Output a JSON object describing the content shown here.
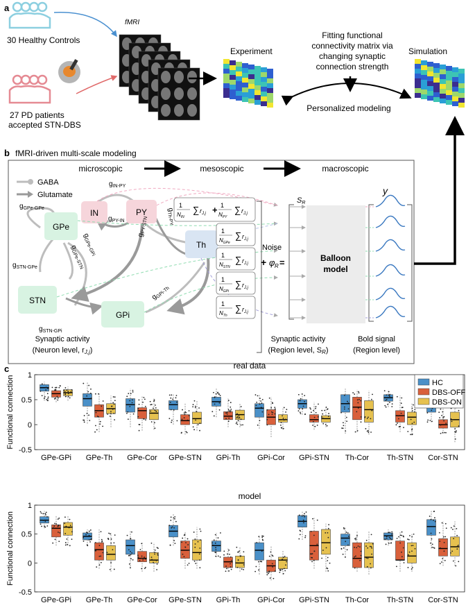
{
  "panel_a": {
    "label": "a",
    "healthy_label": "30 Healthy Controls",
    "pd_label_line1": "27 PD patients",
    "pd_label_line2": "accepted STN-DBS",
    "fmri_label": "fMRI",
    "experiment_label": "Experiment",
    "simulation_label": "Simulation",
    "fitting_line1": "Fitting functional",
    "fitting_line2": "connectivity matrix via",
    "fitting_line3": "changing synaptic",
    "fitting_line4": "connection strength",
    "personalized_label": "Personalized modeling"
  },
  "panel_b": {
    "label": "b",
    "title": "fMRI-driven multi-scale modeling",
    "scale_micro": "microscopic",
    "scale_meso": "mesoscopic",
    "scale_macro": "macroscopic",
    "legend_gaba": "GABA",
    "legend_glutamate": "Glutamate",
    "nodes": {
      "in": "IN",
      "py": "PY",
      "gpe": "GPe",
      "stn": "STN",
      "gpi": "GPi",
      "th": "Th"
    },
    "weights": {
      "g_in_py": "g",
      "g_in_py_sub": "IN-PY",
      "g_py_in": "g",
      "g_py_in_sub": "PY-IN",
      "g_gpe_gpe": "g",
      "g_gpe_gpe_sub": "GPe-GPe",
      "g_stn_gpe": "g",
      "g_stn_gpe_sub": "STN-GPe",
      "g_gpe_gpi": "g",
      "g_gpe_gpi_sub": "GPe-GPi",
      "g_gpe_stn": "g",
      "g_gpe_stn_sub": "GPe-STN",
      "g_py_stn": "g",
      "g_py_stn_sub": "PY-STN",
      "g_th_py": "g",
      "g_th_py_sub": "Th-PY",
      "g_gpi_th": "g",
      "g_gpi_th_sub": "GPi-Th",
      "g_stn_gpi": "g",
      "g_stn_gpi_sub": "STN-GPi"
    },
    "noise_label": "Noise",
    "balloon_label_line1": "Balloon",
    "balloon_label_line2": "model",
    "sr_label": "S",
    "sr_sub": "R",
    "y_label": "y",
    "synaptic_neuron_line1": "Synaptic activity",
    "synaptic_neuron_line2": "(Neuron level, r",
    "synaptic_neuron_sub": "J,j",
    "synaptic_neuron_close": ")",
    "synaptic_region_line1": "Synaptic activity",
    "synaptic_region_line2": "(Region level, S",
    "synaptic_region_sub": "R",
    "synaptic_region_close": ")",
    "bold_line1": "Bold signal",
    "bold_line2": "(Region level)",
    "formula_n_in": "IN",
    "formula_n_py": "PY",
    "formula_n_gpe": "GPe",
    "formula_n_stn": "STN",
    "formula_n_gpi": "GPi",
    "formula_n_th": "Th"
  },
  "panel_c": {
    "label": "c",
    "ylabel": "Functional connection",
    "legend": [
      "HC",
      "DBS-OFF",
      "DBS-ON"
    ]
  },
  "colors": {
    "hc": "#4a90c8",
    "off": "#d9603b",
    "on": "#e6c14f",
    "healthy_icon": "#8ccfe0",
    "pd_icon": "#e58a93",
    "arrow_blue": "#4a90d0",
    "arrow_red": "#e06a6a",
    "gaba_grey": "#bdbdbd",
    "glut_grey": "#9a9a9a",
    "node_pink": "#f6d5db",
    "node_green": "#d8f3e2",
    "node_blue": "#d9e5f3"
  },
  "chart_data": [
    {
      "type": "box",
      "title": "real data",
      "ylabel": "Functional connection",
      "ylim": [
        -0.5,
        1
      ],
      "yticks": [
        -0.5,
        0,
        0.5,
        1
      ],
      "categories": [
        "GPe-GPi",
        "GPe-Th",
        "GPe-Cor",
        "GPe-STN",
        "GPi-Th",
        "GPi-Cor",
        "GPi-STN",
        "Th-Cor",
        "Th-STN",
        "Cor-STN"
      ],
      "series": [
        {
          "name": "HC",
          "q1": [
            0.67,
            0.37,
            0.25,
            0.3,
            0.37,
            0.15,
            0.33,
            0.25,
            0.47,
            0.25
          ],
          "median": [
            0.74,
            0.52,
            0.4,
            0.4,
            0.46,
            0.33,
            0.42,
            0.42,
            0.54,
            0.35
          ],
          "q3": [
            0.8,
            0.62,
            0.52,
            0.48,
            0.55,
            0.42,
            0.5,
            0.6,
            0.6,
            0.43
          ],
          "wmin": [
            0.48,
            0.02,
            -0.05,
            0.0,
            0.15,
            -0.08,
            0.2,
            -0.18,
            0.35,
            0.05
          ],
          "wmax": [
            0.86,
            0.86,
            0.72,
            0.62,
            0.72,
            0.6,
            0.62,
            0.72,
            0.7,
            0.55
          ]
        },
        {
          "name": "DBS-OFF",
          "q1": [
            0.55,
            0.15,
            0.12,
            0.0,
            0.1,
            0.0,
            0.05,
            0.1,
            0.05,
            -0.07
          ],
          "median": [
            0.62,
            0.28,
            0.28,
            0.08,
            0.17,
            0.15,
            0.1,
            0.35,
            0.18,
            0.0
          ],
          "q3": [
            0.68,
            0.4,
            0.34,
            0.2,
            0.26,
            0.3,
            0.2,
            0.55,
            0.28,
            0.1
          ],
          "wmin": [
            0.45,
            -0.15,
            -0.12,
            -0.2,
            -0.05,
            -0.25,
            -0.1,
            -0.15,
            -0.15,
            -0.18
          ],
          "wmax": [
            0.78,
            0.62,
            0.58,
            0.42,
            0.52,
            0.55,
            0.45,
            0.7,
            0.58,
            0.32
          ]
        },
        {
          "name": "DBS-ON",
          "q1": [
            0.58,
            0.22,
            0.1,
            0.02,
            0.1,
            0.05,
            0.05,
            0.05,
            0.0,
            -0.05
          ],
          "median": [
            0.64,
            0.32,
            0.23,
            0.12,
            0.2,
            0.1,
            0.12,
            0.3,
            0.15,
            0.1
          ],
          "q3": [
            0.7,
            0.42,
            0.3,
            0.25,
            0.29,
            0.2,
            0.18,
            0.48,
            0.25,
            0.25
          ],
          "wmin": [
            0.48,
            -0.05,
            -0.1,
            -0.12,
            -0.05,
            -0.1,
            -0.05,
            -0.2,
            -0.2,
            -0.35
          ],
          "wmax": [
            0.76,
            0.58,
            0.52,
            0.48,
            0.42,
            0.35,
            0.35,
            0.68,
            0.42,
            0.42
          ]
        }
      ]
    },
    {
      "type": "box",
      "title": "model",
      "ylabel": "Functional connection",
      "ylim": [
        -0.5,
        1
      ],
      "yticks": [
        -0.5,
        0,
        0.5,
        1
      ],
      "categories": [
        "GPe-GPi",
        "GPe-Th",
        "GPe-Cor",
        "GPe-STN",
        "GPi-Th",
        "GPi-Cor",
        "GPi-STN",
        "Th-Cor",
        "Th-STN",
        "Cor-STN"
      ],
      "series": [
        {
          "name": "HC",
          "q1": [
            0.69,
            0.4,
            0.15,
            0.45,
            0.2,
            0.05,
            0.62,
            0.3,
            0.4,
            0.48
          ],
          "median": [
            0.74,
            0.46,
            0.3,
            0.55,
            0.3,
            0.22,
            0.72,
            0.43,
            0.47,
            0.63
          ],
          "q3": [
            0.8,
            0.52,
            0.4,
            0.65,
            0.38,
            0.35,
            0.82,
            0.5,
            0.52,
            0.75
          ],
          "wmin": [
            0.6,
            0.3,
            -0.1,
            0.3,
            0.1,
            -0.2,
            0.4,
            0.1,
            0.3,
            0.25
          ],
          "wmax": [
            0.9,
            0.58,
            0.55,
            0.85,
            0.52,
            0.48,
            0.9,
            0.62,
            0.58,
            0.9
          ]
        },
        {
          "name": "DBS-OFF",
          "q1": [
            0.45,
            0.05,
            0.02,
            0.08,
            -0.08,
            -0.15,
            0.05,
            -0.08,
            0.05,
            0.12
          ],
          "median": [
            0.6,
            0.23,
            0.08,
            0.22,
            0.02,
            -0.05,
            0.3,
            0.08,
            0.05,
            0.25
          ],
          "q3": [
            0.66,
            0.35,
            0.2,
            0.38,
            0.1,
            0.05,
            0.55,
            0.35,
            0.38,
            0.42
          ],
          "wmin": [
            0.3,
            -0.1,
            -0.15,
            -0.1,
            -0.15,
            -0.3,
            -0.1,
            -0.15,
            -0.15,
            -0.05
          ],
          "wmax": [
            0.82,
            0.58,
            0.35,
            0.55,
            0.25,
            0.3,
            0.78,
            0.55,
            0.55,
            0.72
          ]
        },
        {
          "name": "DBS-ON",
          "q1": [
            0.48,
            0.05,
            0.0,
            0.05,
            -0.08,
            -0.1,
            0.15,
            -0.08,
            0.0,
            0.12
          ],
          "median": [
            0.62,
            0.15,
            0.05,
            0.18,
            0.0,
            0.05,
            0.35,
            0.1,
            0.12,
            0.28
          ],
          "q3": [
            0.7,
            0.3,
            0.18,
            0.4,
            0.12,
            0.1,
            0.58,
            0.35,
            0.35,
            0.45
          ],
          "wmin": [
            0.3,
            -0.15,
            -0.15,
            -0.1,
            -0.15,
            -0.2,
            -0.15,
            -0.2,
            -0.15,
            -0.05
          ],
          "wmax": [
            0.82,
            0.52,
            0.35,
            0.62,
            0.28,
            0.22,
            0.68,
            0.55,
            0.5,
            0.72
          ]
        }
      ]
    }
  ]
}
